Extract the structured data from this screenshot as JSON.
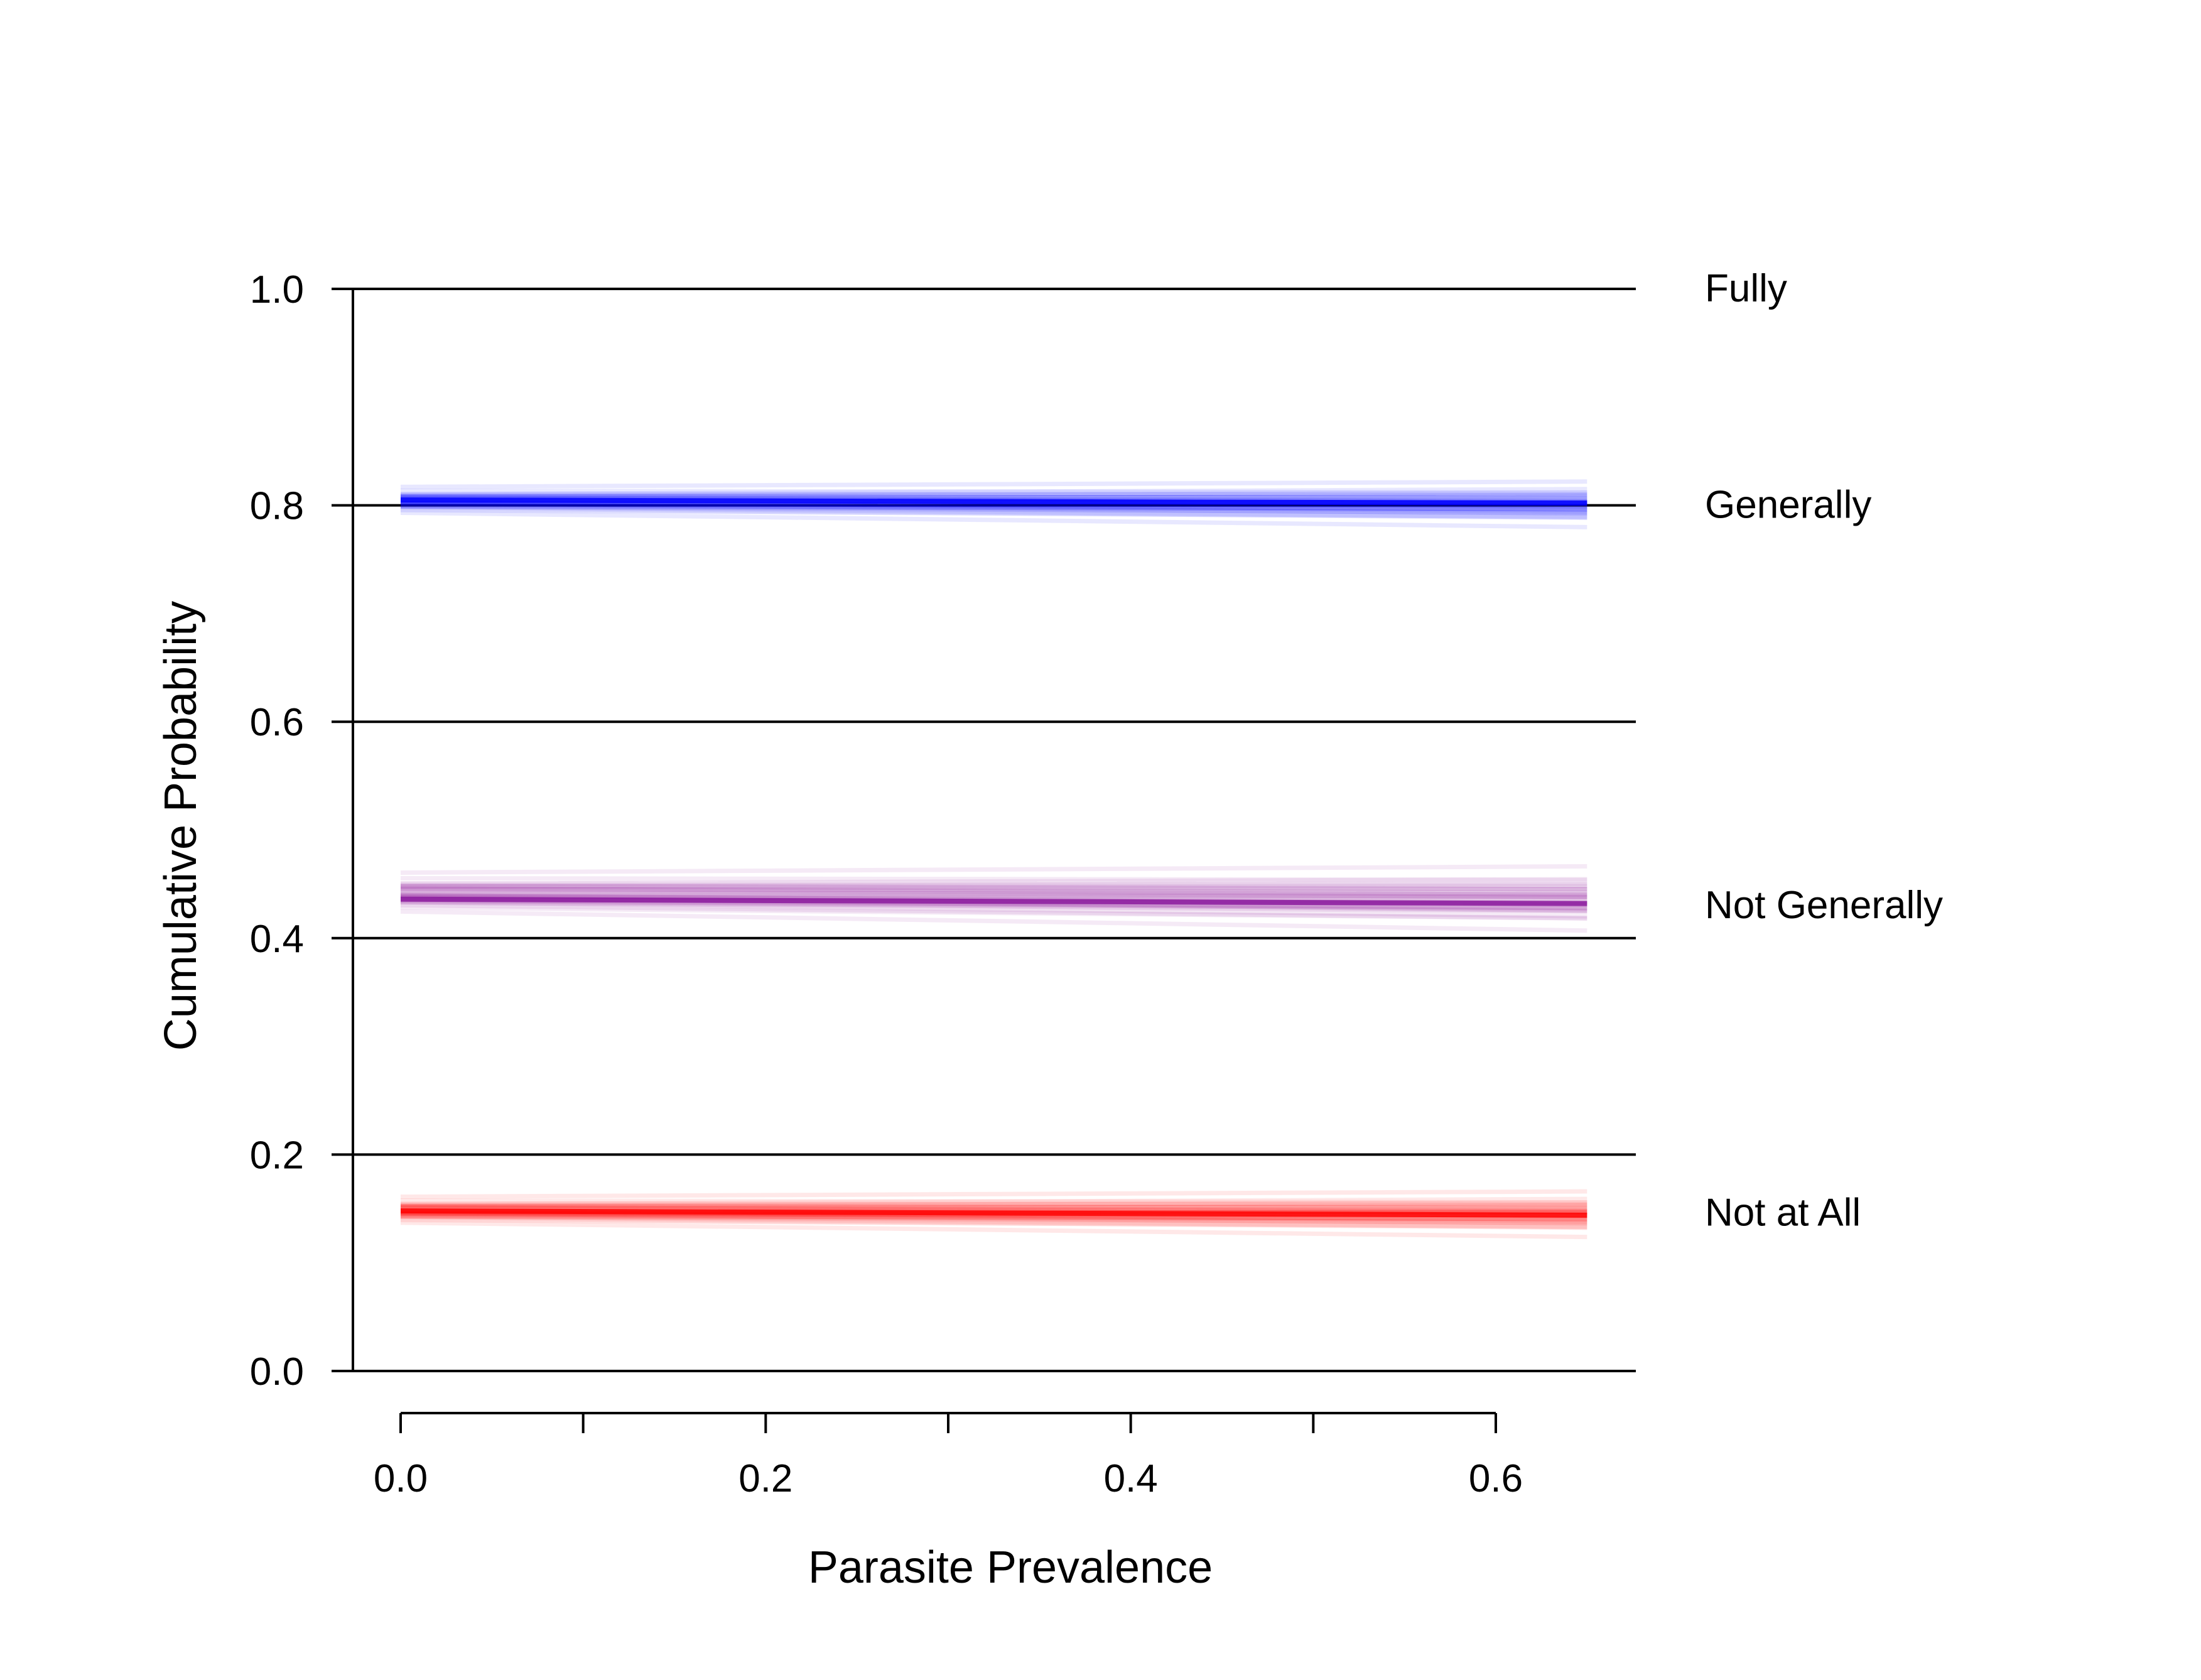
{
  "chart_data": {
    "type": "line",
    "xlabel": "Parasite Prevalence",
    "ylabel": "Cumulative Probability",
    "xlim": [
      0.0,
      0.65
    ],
    "ylim": [
      0.0,
      1.0
    ],
    "x_ticks": [
      0.0,
      0.1,
      0.2,
      0.3,
      0.4,
      0.5,
      0.6
    ],
    "x_tick_labels": [
      "0.0",
      "",
      "0.2",
      "",
      "0.4",
      "",
      "0.6"
    ],
    "y_ticks": [
      0.0,
      0.2,
      0.4,
      0.6,
      0.8,
      1.0
    ],
    "y_tick_labels": [
      "0.0",
      "0.2",
      "0.4",
      "0.6",
      "0.8",
      "1.0"
    ],
    "reference_lines": [
      0.0,
      0.2,
      0.4,
      0.6,
      0.8,
      1.0
    ],
    "category_labels": [
      {
        "text": "Fully",
        "y": 1.0
      },
      {
        "text": "Generally",
        "y": 0.8
      },
      {
        "text": "Not Generally",
        "y": 0.43
      },
      {
        "text": "Not at All",
        "y": 0.146
      }
    ],
    "series": [
      {
        "color": "#0000ff",
        "x": [
          0.0,
          0.65
        ],
        "y_mean": [
          0.805,
          0.802
        ],
        "y_lower": [
          0.79,
          0.78
        ],
        "y_upper": [
          0.822,
          0.828
        ]
      },
      {
        "color": "#8b1a9e",
        "x": [
          0.0,
          0.65
        ],
        "y_mean": [
          0.436,
          0.432
        ],
        "y_lower": [
          0.42,
          0.405
        ],
        "y_upper": [
          0.468,
          0.476
        ]
      },
      {
        "color": "#ff0000",
        "x": [
          0.0,
          0.65
        ],
        "y_mean": [
          0.148,
          0.144
        ],
        "y_lower": [
          0.134,
          0.124
        ],
        "y_upper": [
          0.166,
          0.172
        ]
      }
    ]
  }
}
